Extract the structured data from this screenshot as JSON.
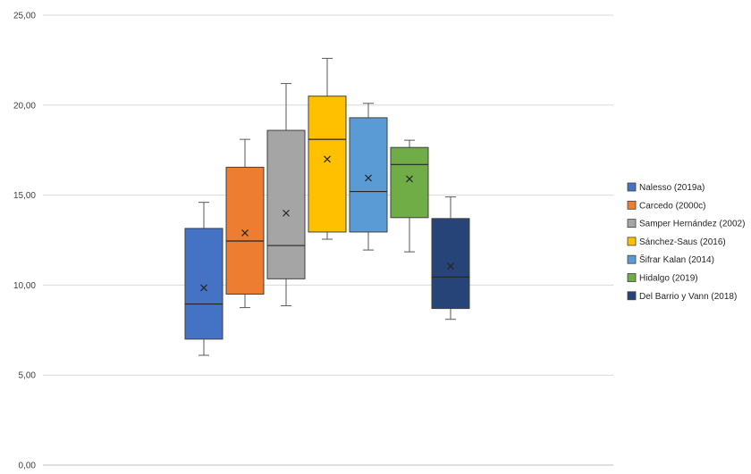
{
  "chart_data": {
    "type": "boxplot",
    "title": "",
    "xlabel": "",
    "ylabel": "",
    "ylim": [
      0,
      25
    ],
    "yticks": [
      "0,00",
      "5,00",
      "10,00",
      "15,00",
      "20,00",
      "25,00"
    ],
    "grid": true,
    "legend_position": "right",
    "series": [
      {
        "name": "Nalesso (2019a)",
        "color": "#4472C4",
        "min": 6.1,
        "q1": 7.0,
        "median": 8.95,
        "q3": 13.15,
        "max": 14.6,
        "mean": 9.85
      },
      {
        "name": "Carcedo (2000c)",
        "color": "#ED7D31",
        "min": 8.75,
        "q1": 9.5,
        "median": 12.45,
        "q3": 16.55,
        "max": 18.1,
        "mean": 12.9
      },
      {
        "name": "Samper Hernández  (2002)",
        "color": "#A5A5A5",
        "min": 8.85,
        "q1": 10.35,
        "median": 12.2,
        "q3": 18.6,
        "max": 21.2,
        "mean": 14.0
      },
      {
        "name": "Sánchez-Saus (2016)",
        "color": "#FFC000",
        "min": 12.55,
        "q1": 12.95,
        "median": 18.1,
        "q3": 20.5,
        "max": 22.6,
        "mean": 17.0
      },
      {
        "name": "Šifrar Kalan (2014)",
        "color": "#5B9BD5",
        "min": 11.95,
        "q1": 12.95,
        "median": 15.2,
        "q3": 19.3,
        "max": 20.1,
        "mean": 15.95
      },
      {
        "name": "Hidalgo (2019)",
        "color": "#70AD47",
        "min": 11.85,
        "q1": 13.75,
        "median": 16.7,
        "q3": 17.65,
        "max": 18.05,
        "mean": 15.9
      },
      {
        "name": "Del Barrio y Vann (2018)",
        "color": "#264478",
        "min": 8.1,
        "q1": 8.7,
        "median": 10.45,
        "q3": 13.7,
        "max": 14.9,
        "mean": 11.05
      }
    ]
  }
}
